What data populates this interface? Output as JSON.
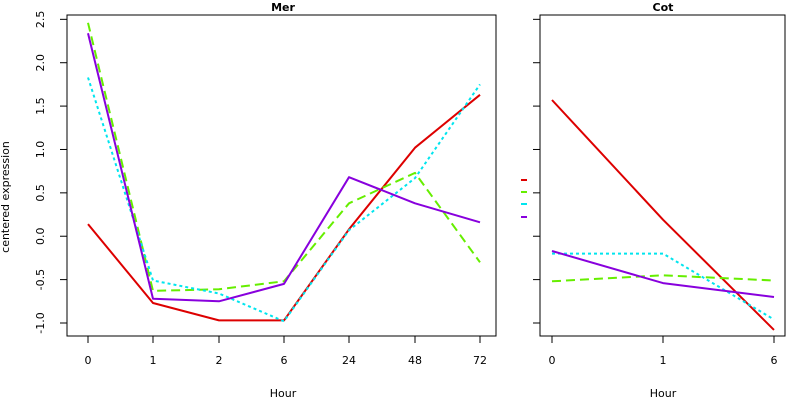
{
  "colors": {
    "red": "#dd0000",
    "green": "#66ee00",
    "cyan": "#00e5ee",
    "purple": "#8800dd"
  },
  "chart_data": [
    {
      "type": "line",
      "title": "Mer",
      "xlabel": "Hour",
      "ylabel": "centered expression",
      "categories": [
        "0",
        "1",
        "2",
        "6",
        "24",
        "48",
        "72"
      ],
      "ylim": [
        -1.15,
        2.55
      ],
      "yticks": [
        "-1.0",
        "-0.5",
        "0.0",
        "0.5",
        "1.0",
        "1.5",
        "2.0",
        "2.5"
      ],
      "grid": false,
      "series": [
        {
          "color": "#dd0000",
          "dash": "solid",
          "values": [
            0.14,
            -0.77,
            -0.97,
            -0.97,
            0.08,
            1.02,
            1.63
          ]
        },
        {
          "color": "#66ee00",
          "dash": "dashed",
          "values": [
            2.46,
            -0.63,
            -0.61,
            -0.52,
            0.38,
            0.73,
            -0.3
          ]
        },
        {
          "color": "#00e5ee",
          "dash": "dotted",
          "values": [
            1.83,
            -0.51,
            -0.66,
            -0.98,
            0.07,
            0.67,
            1.75
          ]
        },
        {
          "color": "#8800dd",
          "dash": "solid",
          "values": [
            2.34,
            -0.72,
            -0.75,
            -0.55,
            0.68,
            0.38,
            0.16
          ]
        }
      ]
    },
    {
      "type": "line",
      "title": "Cot",
      "xlabel": "Hour",
      "categories": [
        "0",
        "1",
        "6"
      ],
      "ylim": [
        -1.15,
        2.55
      ],
      "grid": false,
      "series": [
        {
          "color": "#dd0000",
          "dash": "solid",
          "values": [
            1.57,
            0.19,
            -1.08
          ]
        },
        {
          "color": "#66ee00",
          "dash": "dashed",
          "values": [
            -0.52,
            -0.45,
            -0.51
          ]
        },
        {
          "color": "#00e5ee",
          "dash": "dotted",
          "values": [
            -0.2,
            -0.2,
            -0.96
          ]
        },
        {
          "color": "#8800dd",
          "dash": "solid",
          "values": [
            -0.17,
            -0.54,
            -0.7
          ]
        }
      ]
    }
  ],
  "legend": {
    "placement": "between-panels",
    "colors": [
      "#dd0000",
      "#66ee00",
      "#00e5ee",
      "#8800dd"
    ]
  }
}
